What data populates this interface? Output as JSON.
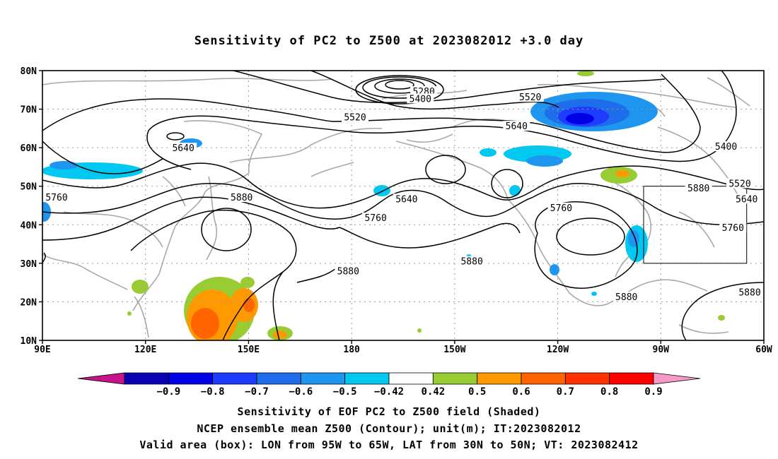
{
  "title": "Sensitivity of PC2 to Z500 at 2023082012 +3.0 day",
  "map": {
    "lon_range": [
      90,
      300
    ],
    "lat_range": [
      10,
      80
    ],
    "lon_ticks": [
      {
        "lon": 90,
        "label": "90E"
      },
      {
        "lon": 120,
        "label": "120E"
      },
      {
        "lon": 150,
        "label": "150E"
      },
      {
        "lon": 180,
        "label": "180"
      },
      {
        "lon": 210,
        "label": "150W"
      },
      {
        "lon": 240,
        "label": "120W"
      },
      {
        "lon": 270,
        "label": "90W"
      },
      {
        "lon": 300,
        "label": "60W"
      }
    ],
    "lat_ticks": [
      {
        "lat": 10,
        "label": "10N"
      },
      {
        "lat": 20,
        "label": "20N"
      },
      {
        "lat": 30,
        "label": "30N"
      },
      {
        "lat": 40,
        "label": "40N"
      },
      {
        "lat": 50,
        "label": "50N"
      },
      {
        "lat": 60,
        "label": "60N"
      },
      {
        "lat": 70,
        "label": "70N"
      },
      {
        "lat": 80,
        "label": "80N"
      }
    ],
    "valid_box": {
      "lon_min": 265,
      "lon_max": 295,
      "lat_min": 30,
      "lat_max": 50
    },
    "contour_labels": [
      {
        "text": "5280",
        "lon": 201,
        "lat": 74.5
      },
      {
        "text": "5400",
        "lon": 200,
        "lat": 72.6
      },
      {
        "text": "5520",
        "lon": 181,
        "lat": 67.8
      },
      {
        "text": "5520",
        "lon": 232,
        "lat": 73.0
      },
      {
        "text": "5640",
        "lon": 228,
        "lat": 65.5
      },
      {
        "text": "5400",
        "lon": 289,
        "lat": 60.2
      },
      {
        "text": "5640",
        "lon": 131,
        "lat": 59.8
      },
      {
        "text": "5520",
        "lon": 293,
        "lat": 50.6
      },
      {
        "text": "5760",
        "lon": 94,
        "lat": 47.0
      },
      {
        "text": "5880",
        "lon": 281,
        "lat": 49.4
      },
      {
        "text": "5640",
        "lon": 196,
        "lat": 46.6
      },
      {
        "text": "5880",
        "lon": 148,
        "lat": 47.0
      },
      {
        "text": "5640",
        "lon": 295,
        "lat": 46.6
      },
      {
        "text": "5760",
        "lon": 241,
        "lat": 44.3
      },
      {
        "text": "5760",
        "lon": 187,
        "lat": 41.7
      },
      {
        "text": "5760",
        "lon": 291,
        "lat": 39.1
      },
      {
        "text": "5880",
        "lon": 179,
        "lat": 27.9
      },
      {
        "text": "5880",
        "lon": 215,
        "lat": 30.4
      },
      {
        "text": "5880",
        "lon": 260,
        "lat": 21.2
      },
      {
        "text": "5880",
        "lon": 303,
        "lat": 22.4
      }
    ]
  },
  "legend": {
    "colors": [
      "#c8148c",
      "#0a00b4",
      "#0000e6",
      "#1e3cff",
      "#1e6eeb",
      "#1e96f0",
      "#00c8f0",
      "#ffffff",
      "#99cc33",
      "#ff9900",
      "#ff6400",
      "#ff3200",
      "#ff0000",
      "#f59ac8"
    ],
    "labels": [
      "−0.9",
      "−0.8",
      "−0.7",
      "−0.6",
      "−0.5",
      "−0.42",
      "0.42",
      "0.5",
      "0.6",
      "0.7",
      "0.8",
      "0.9"
    ]
  },
  "captions": [
    "Sensitivity of EOF PC2 to Z500 field (Shaded)",
    "NCEP ensemble mean Z500 (Contour); unit(m); IT:2023082012",
    "Valid area (box): LON from 95W to 65W, LAT from 30N to 50N; VT: 2023082412"
  ]
}
